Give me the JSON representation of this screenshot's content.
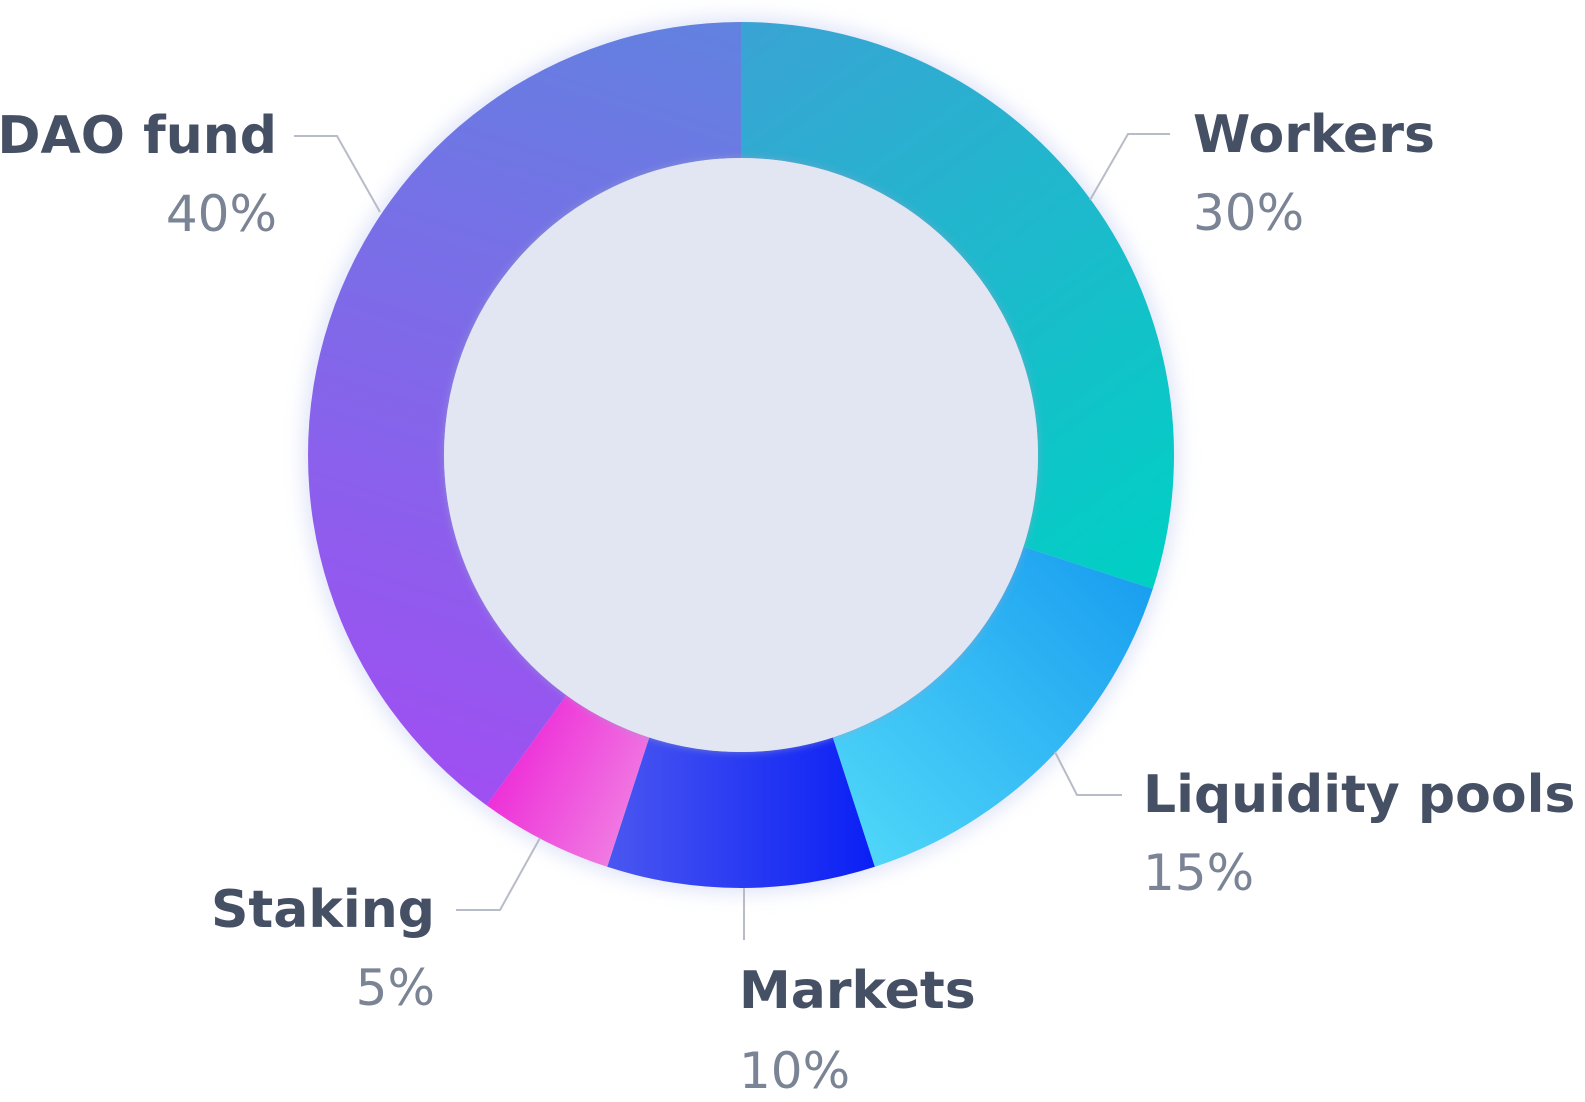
{
  "chart_data": {
    "type": "pie",
    "variant": "donut",
    "title": "",
    "categories": [
      "Workers",
      "Liquidity pools",
      "Markets",
      "Staking",
      "DAO fund"
    ],
    "values": [
      30,
      15,
      10,
      5,
      40
    ],
    "value_labels": [
      "30%",
      "15%",
      "10%",
      "5%",
      "40%"
    ],
    "unit": "%",
    "legend": "none",
    "grid": false,
    "slice_colors": [
      [
        "#3aa3d4",
        "#00d0c4"
      ],
      [
        "#1a9ff0",
        "#4fd6f8"
      ],
      [
        "#0a1ff5",
        "#4a57f0"
      ],
      [
        "#f07ae2",
        "#ee30d8"
      ],
      [
        "#9f4ff2",
        "#6182e0"
      ]
    ],
    "center_fill": "#e2e6f3",
    "label_color": "#465065",
    "value_color": "#7b8495",
    "leader_color": "#b8bcc6"
  }
}
